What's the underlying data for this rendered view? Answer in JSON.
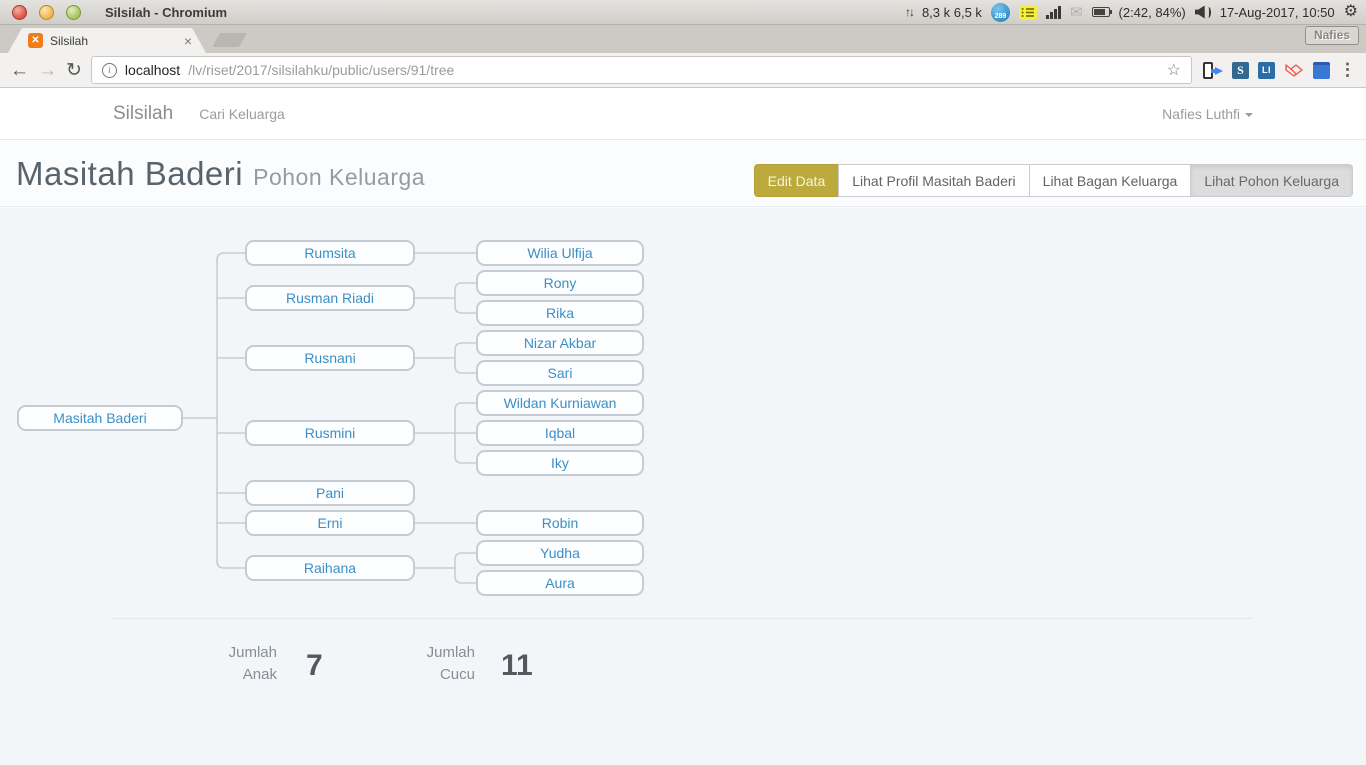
{
  "system_bar": {
    "window_title": "Silsilah - Chromium",
    "network_updown": "8,3 k 6,5 k",
    "messenger_badge": "289",
    "battery_text": "(2:42, 84%)",
    "clock": "17-Aug-2017, 10:50",
    "desktop_badge": "Nafies"
  },
  "browser": {
    "tab_title": "Silsilah",
    "close_tab_glyph": "×",
    "url_host": "localhost",
    "url_path": "/lv/riset/2017/silsilahku/public/users/91/tree"
  },
  "navbar": {
    "brand": "Silsilah",
    "link_cari": "Cari Keluarga",
    "user_menu": "Nafies Luthfi"
  },
  "header": {
    "title": "Masitah Baderi",
    "subtitle": "Pohon Keluarga",
    "btn_edit": "Edit Data",
    "btn_profile": "Lihat Profil Masitah Baderi",
    "btn_bagan": "Lihat Bagan Keluarga",
    "btn_pohon": "Lihat Pohon Keluarga"
  },
  "tree": {
    "root": "Masitah Baderi",
    "children": [
      {
        "name": "Rumsita",
        "children": [
          "Wilia Ulfija"
        ]
      },
      {
        "name": "Rusman Riadi",
        "children": [
          "Rony",
          "Rika"
        ]
      },
      {
        "name": "Rusnani",
        "children": [
          "Nizar Akbar",
          "Sari"
        ]
      },
      {
        "name": "Rusmini",
        "children": [
          "Wildan Kurniawan",
          "Iqbal",
          "Iky"
        ]
      },
      {
        "name": "Pani",
        "children": []
      },
      {
        "name": "Erni",
        "children": [
          "Robin"
        ]
      },
      {
        "name": "Raihana",
        "children": [
          "Yudha",
          "Aura"
        ]
      }
    ]
  },
  "stats": {
    "anak_label_1": "Jumlah",
    "anak_label_2": "Anak",
    "anak_value": "7",
    "cucu_label_1": "Jumlah",
    "cucu_label_2": "Cucu",
    "cucu_value": "11"
  },
  "colors": {
    "accent_blue": "#3e8ec6",
    "gold_button": "#bcab3c",
    "content_bg": "#f3f6f9",
    "connector": "#c8cdd3",
    "node_border": "#c5cbd2"
  }
}
